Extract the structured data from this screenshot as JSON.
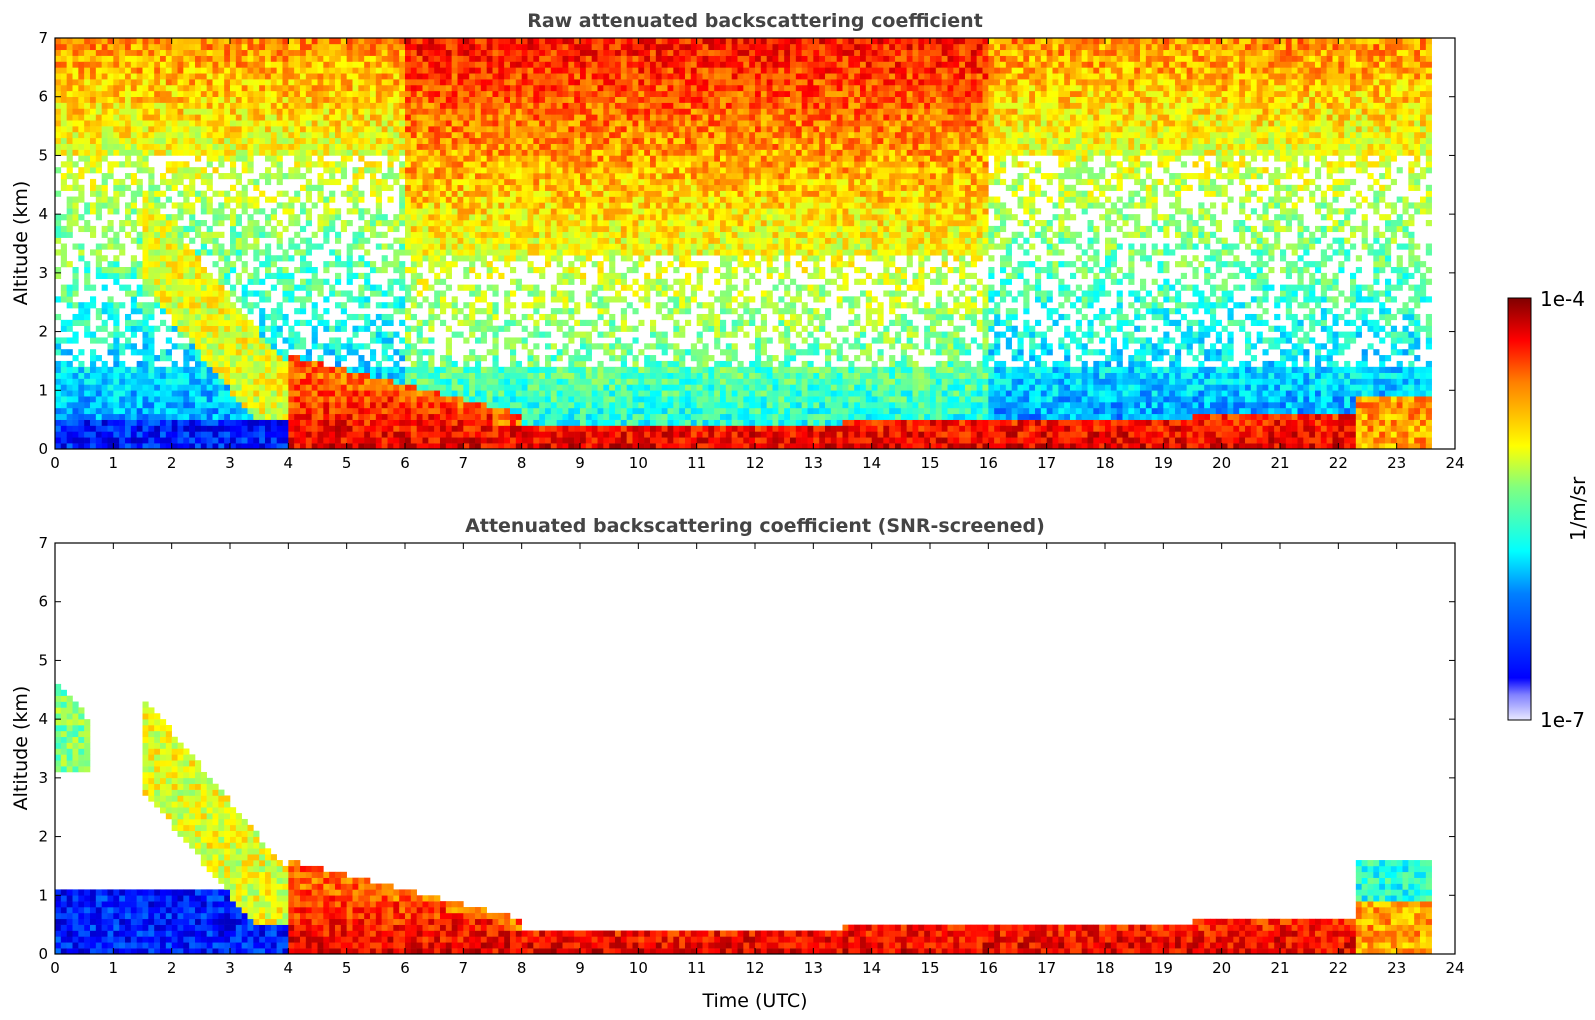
{
  "chart_data": [
    {
      "type": "heatmap",
      "title": "Raw attenuated backscattering coefficient",
      "xlabel": "",
      "ylabel": "Altitude (km)",
      "xlim": [
        0,
        24
      ],
      "ylim": [
        0,
        7
      ],
      "xticks": [
        "0",
        "1",
        "2",
        "3",
        "4",
        "5",
        "6",
        "7",
        "8",
        "9",
        "10",
        "11",
        "12",
        "13",
        "14",
        "15",
        "16",
        "17",
        "18",
        "19",
        "20",
        "21",
        "22",
        "23",
        "24"
      ],
      "yticks": [
        "0",
        "1",
        "2",
        "3",
        "4",
        "5",
        "6",
        "7"
      ],
      "data_end_time": 23.6,
      "layers": [
        {
          "t": [
            0,
            0.5
          ],
          "z": [
            3.1,
            4.7
          ],
          "level": 0.45
        },
        {
          "t": [
            1.5,
            4.5
          ],
          "z": [
            0.5,
            4.4
          ],
          "level": 0.6
        },
        {
          "t": [
            4,
            8
          ],
          "z": [
            0,
            1.6
          ],
          "level": 0.75
        },
        {
          "t": [
            7.5,
            22.5
          ],
          "z": [
            0,
            0.6
          ],
          "level": 0.95
        },
        {
          "t": [
            22.5,
            23.6
          ],
          "z": [
            0,
            0.9
          ],
          "level": 0.7
        }
      ]
    },
    {
      "type": "heatmap",
      "title": "Attenuated backscattering coefficient (SNR-screened)",
      "xlabel": "Time (UTC)",
      "ylabel": "Altitude (km)",
      "xlim": [
        0,
        24
      ],
      "ylim": [
        0,
        7
      ],
      "xticks": [
        "0",
        "1",
        "2",
        "3",
        "4",
        "5",
        "6",
        "7",
        "8",
        "9",
        "10",
        "11",
        "12",
        "13",
        "14",
        "15",
        "16",
        "17",
        "18",
        "19",
        "20",
        "21",
        "22",
        "23",
        "24"
      ],
      "yticks": [
        "0",
        "1",
        "2",
        "3",
        "4",
        "5",
        "6",
        "7"
      ],
      "data_end_time": 23.6
    }
  ],
  "colorbar": {
    "label": "1/m/sr",
    "max_label": "1e-4",
    "min_label": "1e-7",
    "colormap": "jet"
  },
  "colors": {
    "background": "#ffffff",
    "title_color": "#444444",
    "axis_color": "#000000"
  }
}
